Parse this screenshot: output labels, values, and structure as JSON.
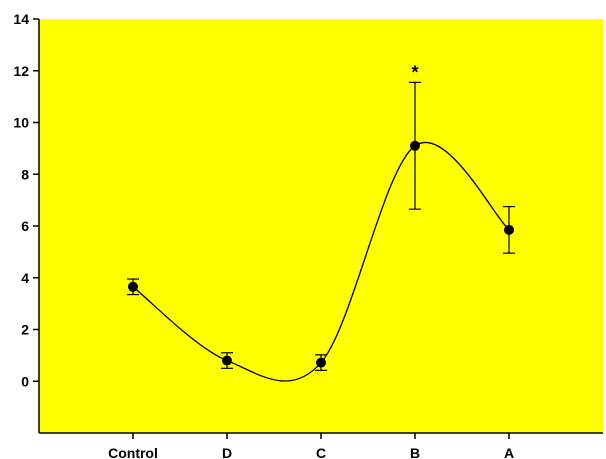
{
  "chart_data": {
    "type": "scatter",
    "title": "",
    "xlabel": "",
    "ylabel": "",
    "categories": [
      "Control",
      "D",
      "C",
      "B",
      "A"
    ],
    "values": [
      3.65,
      0.8,
      0.72,
      9.1,
      5.85
    ],
    "errors": [
      0.3,
      0.3,
      0.3,
      2.45,
      0.9
    ],
    "ylim": [
      -2,
      14
    ],
    "yticks": [
      0,
      2,
      4,
      6,
      8,
      10,
      12,
      14
    ],
    "xlim": [
      -1,
      5
    ],
    "annotations": [
      {
        "category": "B",
        "text": "*"
      }
    ],
    "smooth_curve": true,
    "grid": false,
    "legend": "none",
    "colors": {
      "plot_background": "#ffff00",
      "marker": "#000000",
      "line": "#000000",
      "page_background": "#ffffff"
    }
  }
}
